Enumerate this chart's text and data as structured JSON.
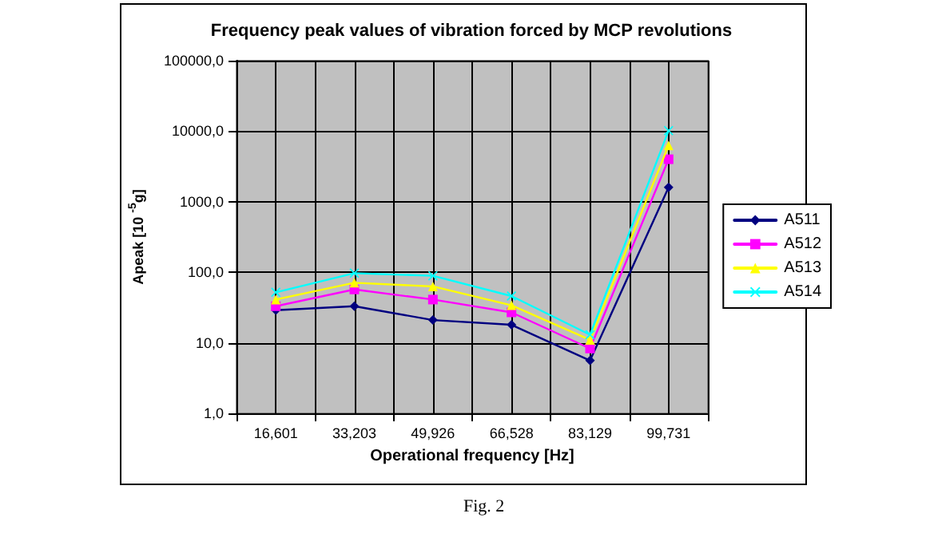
{
  "chart_data": {
    "type": "line",
    "title": "Frequency peak values of vibration forced by MCP revolutions",
    "xlabel": "Operational frequency [Hz]",
    "ylabel": "Apeak [10 $^{-5}$g]",
    "categories": [
      "16,601",
      "33,203",
      "49,926",
      "66,528",
      "83,129",
      "99,731"
    ],
    "series": [
      {
        "name": "A514",
        "color": "#00ffff",
        "marker": "cross",
        "values": [
          52,
          97,
          89,
          46,
          13,
          10200
        ]
      },
      {
        "name": "A513",
        "color": "#ffff00",
        "marker": "triangle",
        "values": [
          41,
          71,
          63,
          34,
          11,
          6300
        ]
      },
      {
        "name": "A512",
        "color": "#ff00ff",
        "marker": "square",
        "values": [
          33,
          57,
          41,
          27,
          8.3,
          4000
        ]
      },
      {
        "name": "A511",
        "color": "#000080",
        "marker": "diamond",
        "values": [
          29,
          33,
          21,
          18,
          5.6,
          1600
        ]
      }
    ],
    "log": "y",
    "ylim": [
      1,
      100000
    ],
    "yticks": [
      {
        "value": 1,
        "label": "1,0"
      },
      {
        "value": 10,
        "label": "10,0"
      },
      {
        "value": 100,
        "label": "100,0"
      },
      {
        "value": 1000,
        "label": "1000,0"
      },
      {
        "value": 10000,
        "label": "10000,0"
      },
      {
        "value": 100000,
        "label": "100000,0"
      }
    ],
    "grid": true,
    "legend": "right",
    "line_style": "solid",
    "annotations": [
      "Fig. 2"
    ]
  }
}
